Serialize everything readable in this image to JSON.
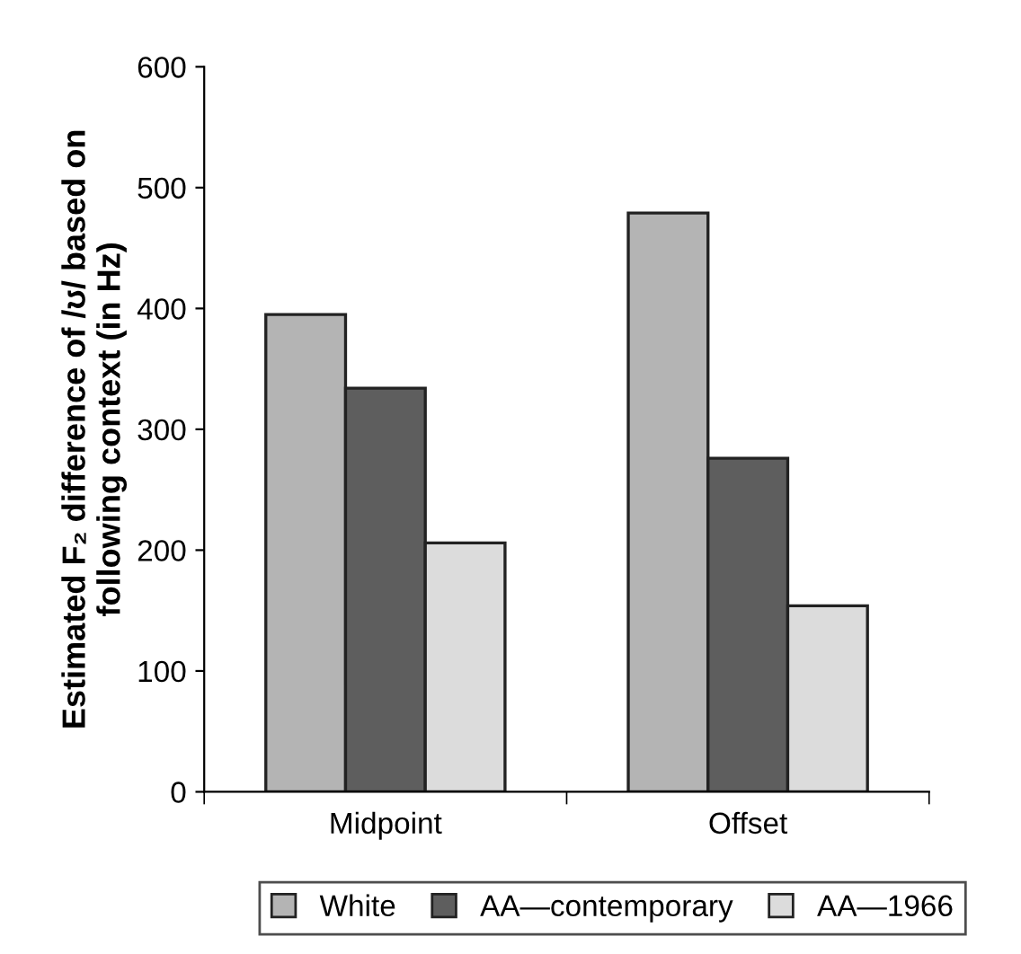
{
  "chart_data": {
    "type": "bar",
    "ylabel": "Estimated F₂ difference of /ʊ/ based on\nfollowing context (in Hz)",
    "categories": [
      "Midpoint",
      "Offset"
    ],
    "series": [
      {
        "name": "White",
        "color": "#b4b4b4",
        "values": [
          395,
          479
        ]
      },
      {
        "name": "AA—contemporary",
        "color": "#5e5e5e",
        "values": [
          334,
          276
        ]
      },
      {
        "name": "AA—1966",
        "color": "#dcdcdc",
        "values": [
          206,
          154
        ]
      }
    ],
    "ylim": [
      0,
      600
    ],
    "yticks": [
      0,
      100,
      200,
      300,
      400,
      500,
      600
    ],
    "grid": false,
    "legend": "bottom"
  }
}
